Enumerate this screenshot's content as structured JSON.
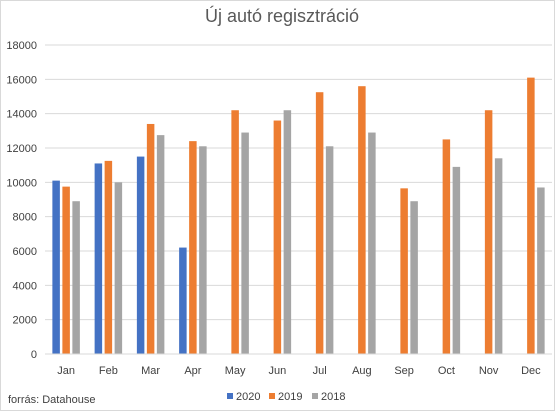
{
  "chart_data": {
    "type": "bar",
    "title": "Új autó regisztráció",
    "xlabel": "",
    "ylabel": "",
    "ylim": [
      0,
      18000
    ],
    "yticks": [
      0,
      2000,
      4000,
      6000,
      8000,
      10000,
      12000,
      14000,
      16000,
      18000
    ],
    "categories": [
      "Jan",
      "Feb",
      "Mar",
      "Apr",
      "May",
      "Jun",
      "Jul",
      "Aug",
      "Sep",
      "Oct",
      "Nov",
      "Dec"
    ],
    "series": [
      {
        "name": "2020",
        "color": "#4472c4",
        "values": [
          10100,
          11100,
          11500,
          6200,
          null,
          null,
          null,
          null,
          null,
          null,
          null,
          null
        ]
      },
      {
        "name": "2019",
        "color": "#ed7d31",
        "values": [
          9750,
          11250,
          13400,
          12400,
          14200,
          13600,
          15250,
          15600,
          9650,
          12500,
          14200,
          16100
        ]
      },
      {
        "name": "2018",
        "color": "#a5a5a5",
        "values": [
          8900,
          10000,
          12750,
          12100,
          12900,
          14200,
          12100,
          12900,
          8900,
          10900,
          11400,
          9700
        ]
      }
    ],
    "grid": true,
    "gridline_color": "#d9d9d9",
    "legend_position": "bottom"
  },
  "footer": {
    "source": "forrás: Datahouse"
  }
}
